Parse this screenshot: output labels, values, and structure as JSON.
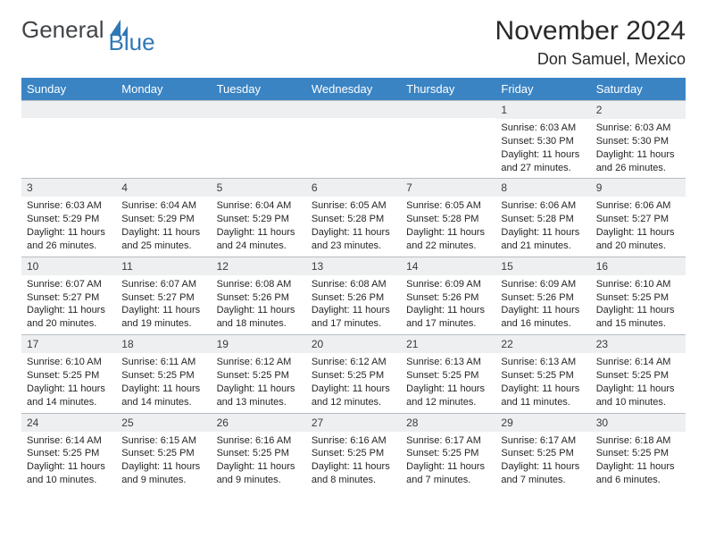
{
  "logo": {
    "text1": "General",
    "text2": "Blue"
  },
  "header": {
    "month": "November 2024",
    "location": "Don Samuel, Mexico"
  },
  "styling": {
    "header_bg": "#3a84c4",
    "header_text": "#ffffff",
    "daynum_bg": "#edeff1",
    "border_color": "#b8bcc0",
    "body_text": "#252525",
    "logo_gray": "#404548",
    "logo_blue": "#2f78b7",
    "month_fontsize": 30,
    "location_fontsize": 18,
    "th_fontsize": 13,
    "body_fontsize": 11
  },
  "weekdays": [
    "Sunday",
    "Monday",
    "Tuesday",
    "Wednesday",
    "Thursday",
    "Friday",
    "Saturday"
  ],
  "weeks": [
    [
      {
        "n": ""
      },
      {
        "n": ""
      },
      {
        "n": ""
      },
      {
        "n": ""
      },
      {
        "n": ""
      },
      {
        "n": "1",
        "sr": "Sunrise: 6:03 AM",
        "ss": "Sunset: 5:30 PM",
        "d1": "Daylight: 11 hours",
        "d2": "and 27 minutes."
      },
      {
        "n": "2",
        "sr": "Sunrise: 6:03 AM",
        "ss": "Sunset: 5:30 PM",
        "d1": "Daylight: 11 hours",
        "d2": "and 26 minutes."
      }
    ],
    [
      {
        "n": "3",
        "sr": "Sunrise: 6:03 AM",
        "ss": "Sunset: 5:29 PM",
        "d1": "Daylight: 11 hours",
        "d2": "and 26 minutes."
      },
      {
        "n": "4",
        "sr": "Sunrise: 6:04 AM",
        "ss": "Sunset: 5:29 PM",
        "d1": "Daylight: 11 hours",
        "d2": "and 25 minutes."
      },
      {
        "n": "5",
        "sr": "Sunrise: 6:04 AM",
        "ss": "Sunset: 5:29 PM",
        "d1": "Daylight: 11 hours",
        "d2": "and 24 minutes."
      },
      {
        "n": "6",
        "sr": "Sunrise: 6:05 AM",
        "ss": "Sunset: 5:28 PM",
        "d1": "Daylight: 11 hours",
        "d2": "and 23 minutes."
      },
      {
        "n": "7",
        "sr": "Sunrise: 6:05 AM",
        "ss": "Sunset: 5:28 PM",
        "d1": "Daylight: 11 hours",
        "d2": "and 22 minutes."
      },
      {
        "n": "8",
        "sr": "Sunrise: 6:06 AM",
        "ss": "Sunset: 5:28 PM",
        "d1": "Daylight: 11 hours",
        "d2": "and 21 minutes."
      },
      {
        "n": "9",
        "sr": "Sunrise: 6:06 AM",
        "ss": "Sunset: 5:27 PM",
        "d1": "Daylight: 11 hours",
        "d2": "and 20 minutes."
      }
    ],
    [
      {
        "n": "10",
        "sr": "Sunrise: 6:07 AM",
        "ss": "Sunset: 5:27 PM",
        "d1": "Daylight: 11 hours",
        "d2": "and 20 minutes."
      },
      {
        "n": "11",
        "sr": "Sunrise: 6:07 AM",
        "ss": "Sunset: 5:27 PM",
        "d1": "Daylight: 11 hours",
        "d2": "and 19 minutes."
      },
      {
        "n": "12",
        "sr": "Sunrise: 6:08 AM",
        "ss": "Sunset: 5:26 PM",
        "d1": "Daylight: 11 hours",
        "d2": "and 18 minutes."
      },
      {
        "n": "13",
        "sr": "Sunrise: 6:08 AM",
        "ss": "Sunset: 5:26 PM",
        "d1": "Daylight: 11 hours",
        "d2": "and 17 minutes."
      },
      {
        "n": "14",
        "sr": "Sunrise: 6:09 AM",
        "ss": "Sunset: 5:26 PM",
        "d1": "Daylight: 11 hours",
        "d2": "and 17 minutes."
      },
      {
        "n": "15",
        "sr": "Sunrise: 6:09 AM",
        "ss": "Sunset: 5:26 PM",
        "d1": "Daylight: 11 hours",
        "d2": "and 16 minutes."
      },
      {
        "n": "16",
        "sr": "Sunrise: 6:10 AM",
        "ss": "Sunset: 5:25 PM",
        "d1": "Daylight: 11 hours",
        "d2": "and 15 minutes."
      }
    ],
    [
      {
        "n": "17",
        "sr": "Sunrise: 6:10 AM",
        "ss": "Sunset: 5:25 PM",
        "d1": "Daylight: 11 hours",
        "d2": "and 14 minutes."
      },
      {
        "n": "18",
        "sr": "Sunrise: 6:11 AM",
        "ss": "Sunset: 5:25 PM",
        "d1": "Daylight: 11 hours",
        "d2": "and 14 minutes."
      },
      {
        "n": "19",
        "sr": "Sunrise: 6:12 AM",
        "ss": "Sunset: 5:25 PM",
        "d1": "Daylight: 11 hours",
        "d2": "and 13 minutes."
      },
      {
        "n": "20",
        "sr": "Sunrise: 6:12 AM",
        "ss": "Sunset: 5:25 PM",
        "d1": "Daylight: 11 hours",
        "d2": "and 12 minutes."
      },
      {
        "n": "21",
        "sr": "Sunrise: 6:13 AM",
        "ss": "Sunset: 5:25 PM",
        "d1": "Daylight: 11 hours",
        "d2": "and 12 minutes."
      },
      {
        "n": "22",
        "sr": "Sunrise: 6:13 AM",
        "ss": "Sunset: 5:25 PM",
        "d1": "Daylight: 11 hours",
        "d2": "and 11 minutes."
      },
      {
        "n": "23",
        "sr": "Sunrise: 6:14 AM",
        "ss": "Sunset: 5:25 PM",
        "d1": "Daylight: 11 hours",
        "d2": "and 10 minutes."
      }
    ],
    [
      {
        "n": "24",
        "sr": "Sunrise: 6:14 AM",
        "ss": "Sunset: 5:25 PM",
        "d1": "Daylight: 11 hours",
        "d2": "and 10 minutes."
      },
      {
        "n": "25",
        "sr": "Sunrise: 6:15 AM",
        "ss": "Sunset: 5:25 PM",
        "d1": "Daylight: 11 hours",
        "d2": "and 9 minutes."
      },
      {
        "n": "26",
        "sr": "Sunrise: 6:16 AM",
        "ss": "Sunset: 5:25 PM",
        "d1": "Daylight: 11 hours",
        "d2": "and 9 minutes."
      },
      {
        "n": "27",
        "sr": "Sunrise: 6:16 AM",
        "ss": "Sunset: 5:25 PM",
        "d1": "Daylight: 11 hours",
        "d2": "and 8 minutes."
      },
      {
        "n": "28",
        "sr": "Sunrise: 6:17 AM",
        "ss": "Sunset: 5:25 PM",
        "d1": "Daylight: 11 hours",
        "d2": "and 7 minutes."
      },
      {
        "n": "29",
        "sr": "Sunrise: 6:17 AM",
        "ss": "Sunset: 5:25 PM",
        "d1": "Daylight: 11 hours",
        "d2": "and 7 minutes."
      },
      {
        "n": "30",
        "sr": "Sunrise: 6:18 AM",
        "ss": "Sunset: 5:25 PM",
        "d1": "Daylight: 11 hours",
        "d2": "and 6 minutes."
      }
    ]
  ]
}
